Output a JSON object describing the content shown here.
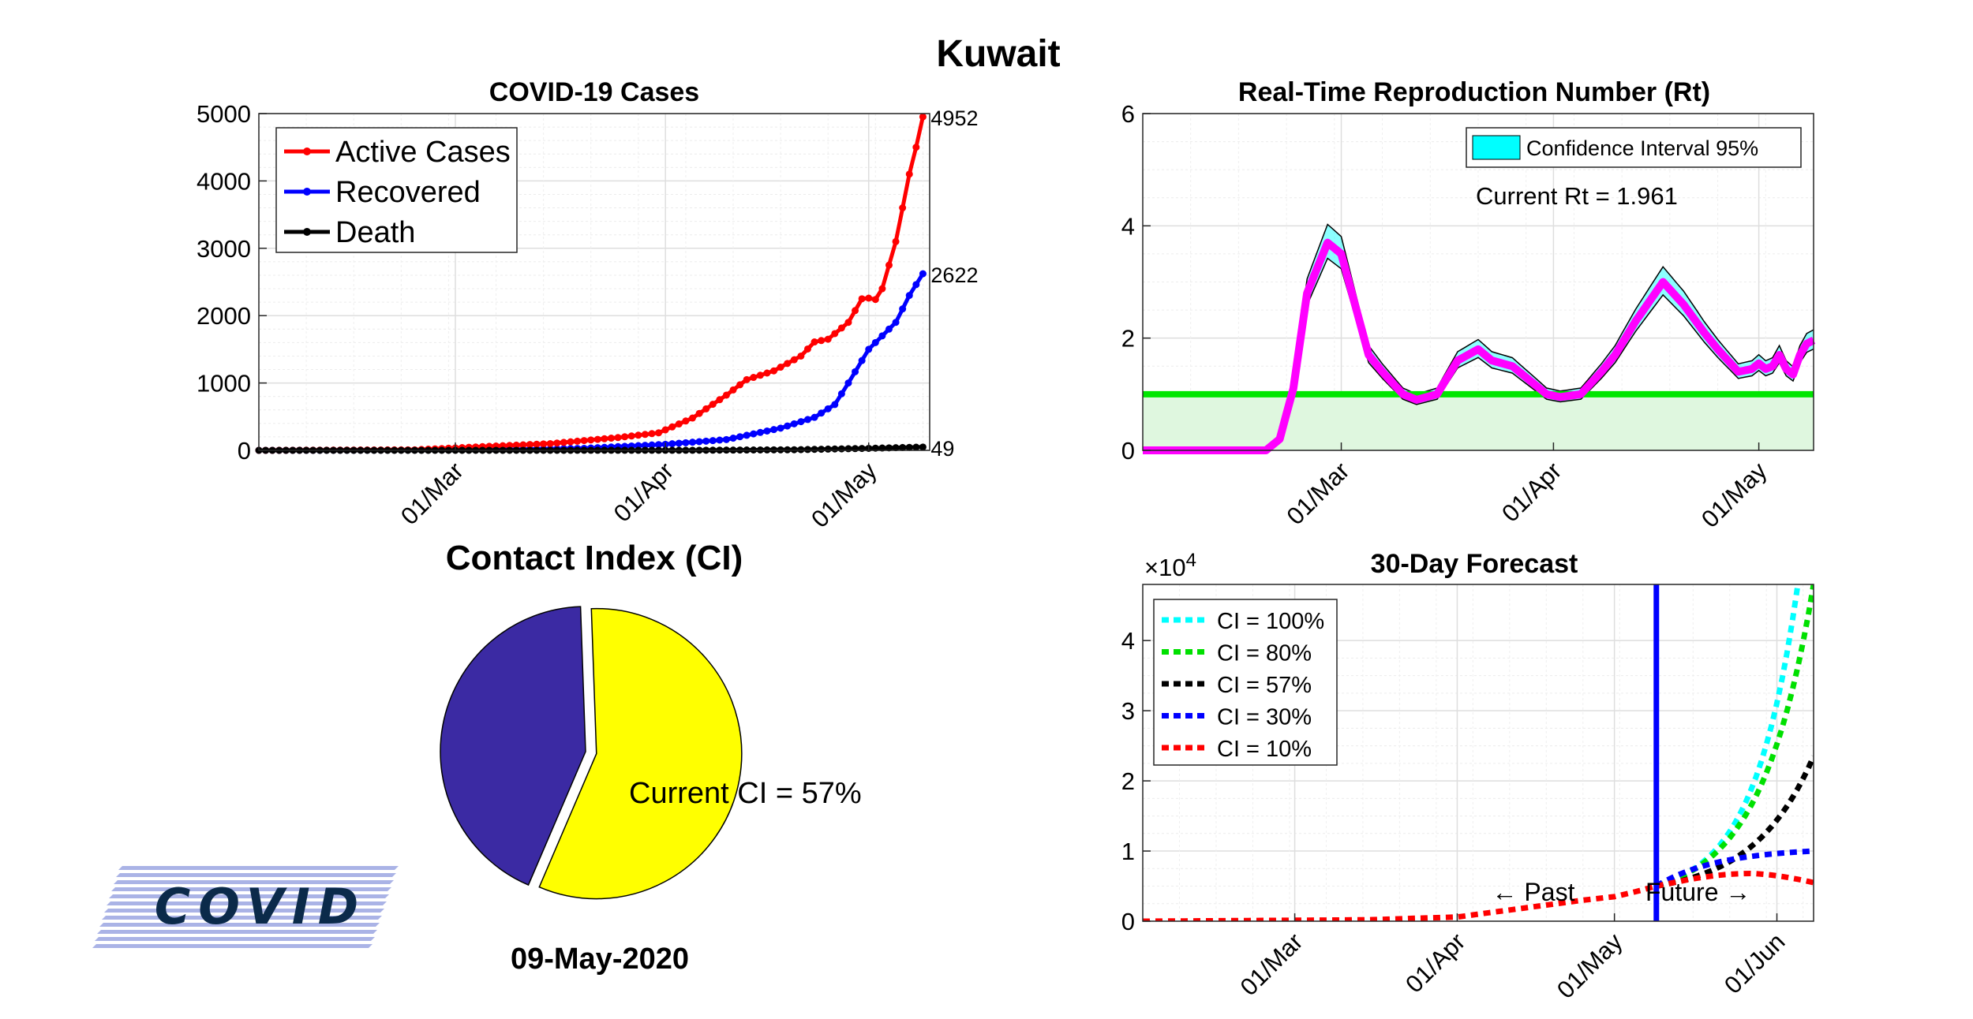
{
  "main_title": "Kuwait",
  "chart_data": [
    {
      "id": "cases",
      "type": "line",
      "title": "COVID-19 Cases",
      "xlabel": "",
      "ylabel": "",
      "x_start": "2020-02-01",
      "x_end": "2020-05-09",
      "xlim": [
        "2020-02-01",
        "2020-05-10"
      ],
      "ylim": [
        0,
        5000
      ],
      "yticks": [
        0,
        1000,
        2000,
        3000,
        4000,
        5000
      ],
      "xticks": [
        "2020-03-01",
        "2020-04-01",
        "2020-05-01"
      ],
      "xtick_labels": [
        "01/Mar",
        "01/Apr",
        "01/May"
      ],
      "grid": true,
      "legend": "top-left",
      "series": [
        {
          "name": "Active Cases",
          "color": "#ff0000",
          "anchors": [
            [
              "2020-02-01",
              0
            ],
            [
              "2020-02-24",
              8
            ],
            [
              "2020-03-05",
              55
            ],
            [
              "2020-03-15",
              100
            ],
            [
              "2020-03-25",
              190
            ],
            [
              "2020-03-31",
              260
            ],
            [
              "2020-04-05",
              480
            ],
            [
              "2020-04-10",
              820
            ],
            [
              "2020-04-13",
              1050
            ],
            [
              "2020-04-17",
              1180
            ],
            [
              "2020-04-21",
              1400
            ],
            [
              "2020-04-23",
              1610
            ],
            [
              "2020-04-25",
              1650
            ],
            [
              "2020-04-28",
              1900
            ],
            [
              "2020-04-30",
              2250
            ],
            [
              "2020-05-01",
              2260
            ],
            [
              "2020-05-02",
              2240
            ],
            [
              "2020-05-03",
              2400
            ],
            [
              "2020-05-04",
              2750
            ],
            [
              "2020-05-05",
              3100
            ],
            [
              "2020-05-06",
              3600
            ],
            [
              "2020-05-07",
              4100
            ],
            [
              "2020-05-08",
              4500
            ],
            [
              "2020-05-09",
              4952
            ]
          ],
          "end_label": "4952"
        },
        {
          "name": "Recovered",
          "color": "#0000ff",
          "anchors": [
            [
              "2020-02-01",
              0
            ],
            [
              "2020-03-05",
              5
            ],
            [
              "2020-03-20",
              30
            ],
            [
              "2020-04-01",
              90
            ],
            [
              "2020-04-10",
              160
            ],
            [
              "2020-04-18",
              330
            ],
            [
              "2020-04-23",
              490
            ],
            [
              "2020-04-26",
              680
            ],
            [
              "2020-04-28",
              1000
            ],
            [
              "2020-05-01",
              1500
            ],
            [
              "2020-05-03",
              1700
            ],
            [
              "2020-05-05",
              1900
            ],
            [
              "2020-05-07",
              2300
            ],
            [
              "2020-05-09",
              2622
            ]
          ],
          "end_label": "2622"
        },
        {
          "name": "Death",
          "color": "#000000",
          "anchors": [
            [
              "2020-02-01",
              0
            ],
            [
              "2020-04-05",
              1
            ],
            [
              "2020-04-20",
              9
            ],
            [
              "2020-05-01",
              30
            ],
            [
              "2020-05-09",
              49
            ]
          ],
          "end_label": "49"
        }
      ]
    },
    {
      "id": "rt",
      "type": "line",
      "title": "Real-Time Reproduction Number (Rt)",
      "xlabel": "",
      "ylabel": "",
      "x_start": "2020-02-01",
      "x_end": "2020-05-09",
      "xlim": [
        "2020-02-01",
        "2020-05-09"
      ],
      "ylim": [
        0,
        6
      ],
      "yticks": [
        0,
        2,
        4,
        6
      ],
      "xticks": [
        "2020-03-01",
        "2020-04-01",
        "2020-05-01"
      ],
      "xtick_labels": [
        "01/Mar",
        "01/Apr",
        "01/May"
      ],
      "grid": true,
      "legend": "top-right",
      "legend_entry": "Confidence Interval 95%",
      "legend_color": "#00ffff",
      "annotation": "Current Rt = 1.961",
      "threshold": 1,
      "threshold_color": "#00e600",
      "series": [
        {
          "name": "Rt",
          "color": "#ff00ff",
          "anchors": [
            [
              "2020-02-01",
              0
            ],
            [
              "2020-02-19",
              0
            ],
            [
              "2020-02-21",
              0.2
            ],
            [
              "2020-02-23",
              1.1
            ],
            [
              "2020-02-25",
              2.8
            ],
            [
              "2020-02-28",
              3.7
            ],
            [
              "2020-03-01",
              3.5
            ],
            [
              "2020-03-03",
              2.6
            ],
            [
              "2020-03-05",
              1.7
            ],
            [
              "2020-03-07",
              1.4
            ],
            [
              "2020-03-10",
              1.0
            ],
            [
              "2020-03-12",
              0.9
            ],
            [
              "2020-03-15",
              1.0
            ],
            [
              "2020-03-18",
              1.6
            ],
            [
              "2020-03-21",
              1.8
            ],
            [
              "2020-03-23",
              1.6
            ],
            [
              "2020-03-26",
              1.5
            ],
            [
              "2020-03-28",
              1.3
            ],
            [
              "2020-03-31",
              1.0
            ],
            [
              "2020-04-02",
              0.95
            ],
            [
              "2020-04-05",
              1.0
            ],
            [
              "2020-04-08",
              1.4
            ],
            [
              "2020-04-10",
              1.7
            ],
            [
              "2020-04-13",
              2.3
            ],
            [
              "2020-04-17",
              3.0
            ],
            [
              "2020-04-20",
              2.6
            ],
            [
              "2020-04-23",
              2.1
            ],
            [
              "2020-04-25",
              1.8
            ],
            [
              "2020-04-28",
              1.4
            ],
            [
              "2020-04-30",
              1.45
            ],
            [
              "2020-05-01",
              1.55
            ],
            [
              "2020-05-02",
              1.45
            ],
            [
              "2020-05-03",
              1.5
            ],
            [
              "2020-05-04",
              1.7
            ],
            [
              "2020-05-05",
              1.45
            ],
            [
              "2020-05-06",
              1.35
            ],
            [
              "2020-05-07",
              1.7
            ],
            [
              "2020-05-08",
              1.9
            ],
            [
              "2020-05-09",
              1.961
            ]
          ]
        }
      ]
    },
    {
      "id": "ci",
      "type": "pie",
      "title": "Contact Index (CI)",
      "values": [
        57,
        43
      ],
      "colors": [
        "#ffff00",
        "#3b2aa3"
      ],
      "label": "Current CI = 57%",
      "date": "09-May-2020"
    },
    {
      "id": "forecast",
      "type": "line",
      "title": "30-Day Forecast",
      "xlabel": "",
      "ylabel": "",
      "exponent_label": "×10",
      "exponent_power": "4",
      "x_start": "2020-02-01",
      "x_end": "2020-06-08",
      "xlim": [
        "2020-02-01",
        "2020-06-08"
      ],
      "ylim": [
        0,
        4.8
      ],
      "yticks": [
        0,
        1,
        2,
        3,
        4
      ],
      "xticks": [
        "2020-03-01",
        "2020-04-01",
        "2020-05-01",
        "2020-06-01"
      ],
      "xtick_labels": [
        "01/Mar",
        "01/Apr",
        "01/May",
        "01/Jun"
      ],
      "grid": true,
      "legend": "top-left",
      "today": "2020-05-09",
      "today_color": "#0000ff",
      "past_label": "← Past",
      "future_label": "Future →",
      "history": [
        [
          "2020-02-01",
          0
        ],
        [
          "2020-03-15",
          0.02
        ],
        [
          "2020-04-01",
          0.06
        ],
        [
          "2020-04-15",
          0.2
        ],
        [
          "2020-04-25",
          0.3
        ],
        [
          "2020-05-01",
          0.35
        ],
        [
          "2020-05-05",
          0.42
        ],
        [
          "2020-05-09",
          0.5
        ]
      ],
      "series": [
        {
          "name": "CI = 100%",
          "color": "#00ffff",
          "end": 4.8,
          "end_date": "2020-06-05",
          "shape": "exp",
          "k": 3.2
        },
        {
          "name": "CI = 80%",
          "color": "#00e000",
          "end": 4.8,
          "end_date": "2020-06-08",
          "shape": "exp",
          "k": 3.0
        },
        {
          "name": "CI = 57%",
          "color": "#000000",
          "end": 2.35,
          "end_date": "2020-06-08",
          "shape": "exp",
          "k": 2.6
        },
        {
          "name": "CI = 30%",
          "color": "#0000ff",
          "end": 1.0,
          "end_date": "2020-06-08",
          "shape": "sat"
        },
        {
          "name": "CI = 10%",
          "color": "#ff0000",
          "end": 0.55,
          "end_date": "2020-06-08",
          "shape": "hump",
          "peak": 0.68
        }
      ]
    }
  ],
  "logo": {
    "text": "COVID"
  }
}
